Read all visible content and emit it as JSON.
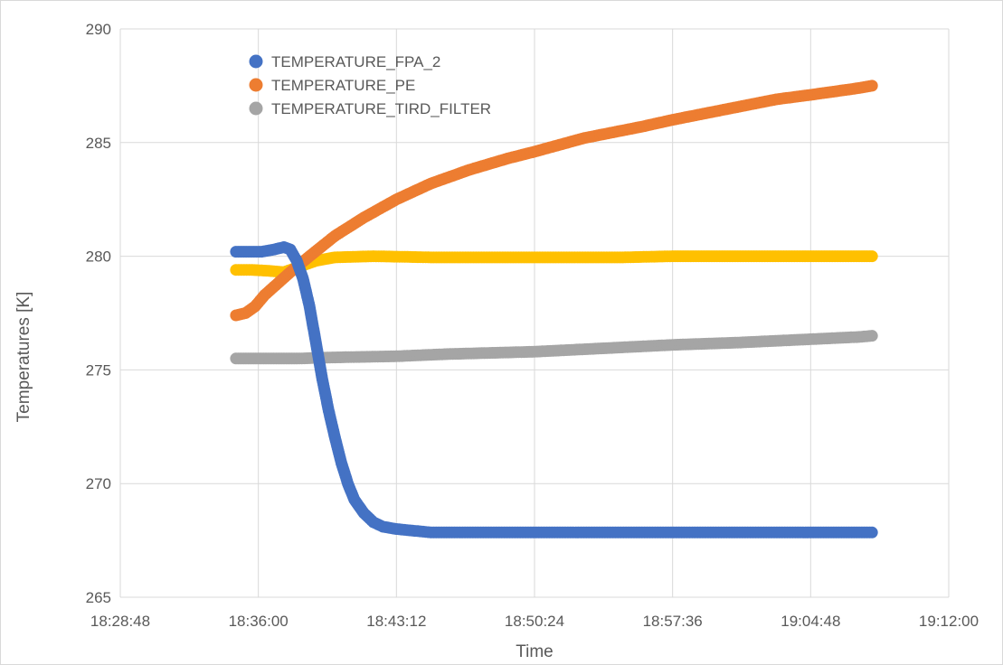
{
  "chart_data": {
    "type": "scatter",
    "title": "",
    "xlabel": "Time",
    "ylabel": "Temperatures [K]",
    "xlim": [
      "18:28:48",
      "19:12:00"
    ],
    "ylim": [
      265,
      290
    ],
    "x_ticks": [
      "18:28:48",
      "18:36:00",
      "18:43:12",
      "18:50:24",
      "18:57:36",
      "19:04:48",
      "19:12:00"
    ],
    "y_ticks": [
      265,
      270,
      275,
      280,
      285,
      290
    ],
    "grid": true,
    "legend_position": "top-left",
    "series": [
      {
        "name": "TEMPERATURE_FPA_2",
        "color": "#4472C4",
        "points": [
          [
            "18:34:50",
            280.2
          ],
          [
            "18:35:30",
            280.2
          ],
          [
            "18:36:10",
            280.2
          ],
          [
            "18:36:50",
            280.3
          ],
          [
            "18:37:20",
            280.4
          ],
          [
            "18:37:40",
            280.3
          ],
          [
            "18:38:00",
            279.8
          ],
          [
            "18:38:20",
            279.0
          ],
          [
            "18:38:40",
            277.8
          ],
          [
            "18:39:00",
            276.2
          ],
          [
            "18:39:20",
            274.6
          ],
          [
            "18:39:40",
            273.2
          ],
          [
            "18:40:00",
            272.0
          ],
          [
            "18:40:20",
            270.9
          ],
          [
            "18:40:40",
            270.0
          ],
          [
            "18:41:00",
            269.3
          ],
          [
            "18:41:30",
            268.7
          ],
          [
            "18:42:00",
            268.3
          ],
          [
            "18:42:30",
            268.1
          ],
          [
            "18:43:12",
            268.0
          ],
          [
            "18:45:00",
            267.85
          ],
          [
            "18:48:00",
            267.85
          ],
          [
            "18:52:00",
            267.85
          ],
          [
            "18:56:00",
            267.85
          ],
          [
            "19:00:00",
            267.85
          ],
          [
            "19:04:00",
            267.85
          ],
          [
            "19:06:00",
            267.85
          ],
          [
            "19:07:20",
            267.85
          ],
          [
            "19:08:00",
            267.85
          ]
        ]
      },
      {
        "name": "TEMPERATURE_PE",
        "color": "#ED7D31",
        "points": [
          [
            "18:34:50",
            277.4
          ],
          [
            "18:35:20",
            277.5
          ],
          [
            "18:35:50",
            277.8
          ],
          [
            "18:36:20",
            278.3
          ],
          [
            "18:37:00",
            278.8
          ],
          [
            "18:37:40",
            279.3
          ],
          [
            "18:38:40",
            280.0
          ],
          [
            "18:40:00",
            280.9
          ],
          [
            "18:41:30",
            281.7
          ],
          [
            "18:43:12",
            282.5
          ],
          [
            "18:45:00",
            283.2
          ],
          [
            "18:47:00",
            283.8
          ],
          [
            "18:49:00",
            284.3
          ],
          [
            "18:50:24",
            284.6
          ],
          [
            "18:53:00",
            285.2
          ],
          [
            "18:56:00",
            285.7
          ],
          [
            "18:57:36",
            286.0
          ],
          [
            "19:00:00",
            286.4
          ],
          [
            "19:03:00",
            286.9
          ],
          [
            "19:04:48",
            287.1
          ],
          [
            "19:06:30",
            287.3
          ],
          [
            "19:07:20",
            287.4
          ],
          [
            "19:08:00",
            287.5
          ]
        ]
      },
      {
        "name": "TEMPERATURE_TIRD_FILTER",
        "color": "#A5A5A5",
        "points": [
          [
            "18:34:50",
            275.5
          ],
          [
            "18:36:00",
            275.5
          ],
          [
            "18:38:00",
            275.5
          ],
          [
            "18:40:00",
            275.55
          ],
          [
            "18:43:12",
            275.6
          ],
          [
            "18:46:00",
            275.7
          ],
          [
            "18:50:24",
            275.8
          ],
          [
            "18:54:00",
            275.95
          ],
          [
            "18:57:36",
            276.1
          ],
          [
            "19:01:00",
            276.2
          ],
          [
            "19:04:48",
            276.35
          ],
          [
            "19:07:20",
            276.45
          ],
          [
            "19:08:00",
            276.5
          ]
        ]
      },
      {
        "name": "",
        "color": "#FFC000",
        "points": [
          [
            "18:34:50",
            279.4
          ],
          [
            "18:35:40",
            279.4
          ],
          [
            "18:36:40",
            279.35
          ],
          [
            "18:37:20",
            279.3
          ],
          [
            "18:38:00",
            279.5
          ],
          [
            "18:39:00",
            279.8
          ],
          [
            "18:40:00",
            279.95
          ],
          [
            "18:42:00",
            280.0
          ],
          [
            "18:45:00",
            279.95
          ],
          [
            "18:50:24",
            279.95
          ],
          [
            "18:55:00",
            279.95
          ],
          [
            "18:57:36",
            280.0
          ],
          [
            "19:01:00",
            280.0
          ],
          [
            "19:04:48",
            280.0
          ],
          [
            "19:07:20",
            280.0
          ],
          [
            "19:08:00",
            280.0
          ]
        ]
      }
    ]
  },
  "colors": {
    "grid": "#D9D9D9",
    "text": "#595959",
    "background": "#FFFFFF"
  }
}
